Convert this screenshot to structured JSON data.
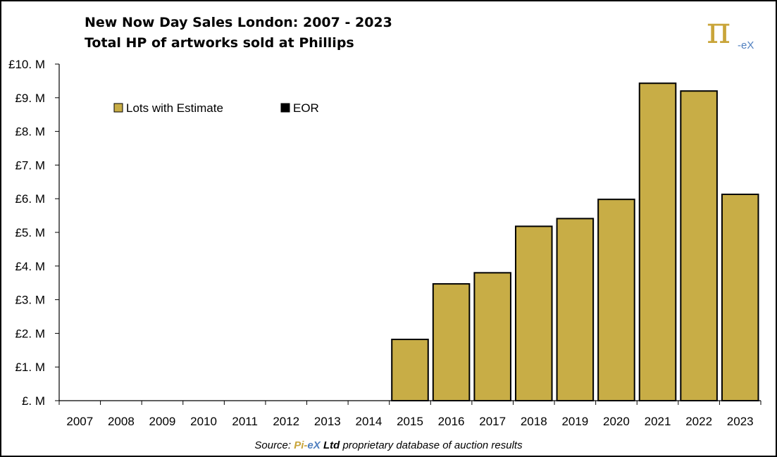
{
  "chart_data": {
    "type": "bar",
    "title": "New Now Day Sales London: 2007 - 2023",
    "subtitle": "Total HP of artworks sold at Phillips",
    "categories": [
      "2007",
      "2008",
      "2009",
      "2010",
      "2011",
      "2012",
      "2013",
      "2014",
      "2015",
      "2016",
      "2017",
      "2018",
      "2019",
      "2020",
      "2021",
      "2022",
      "2023"
    ],
    "series": [
      {
        "name": "Lots with Estimate",
        "color": "#c8ad46",
        "values": [
          0,
          0,
          0,
          0,
          0,
          0,
          0,
          0,
          1.82,
          3.47,
          3.8,
          5.18,
          5.41,
          5.98,
          9.43,
          9.2,
          6.13
        ]
      },
      {
        "name": "EOR",
        "color": "#000000",
        "values": [
          0,
          0,
          0,
          0,
          0,
          0,
          0,
          0,
          0,
          0,
          0,
          0,
          0,
          0,
          0,
          0,
          0
        ]
      }
    ],
    "yticks": [
      "£. M",
      "£1. M",
      "£2. M",
      "£3. M",
      "£4. M",
      "£5. M",
      "£6. M",
      "£7. M",
      "£8. M",
      "£9. M",
      "£10. M"
    ],
    "ylim": [
      0,
      10
    ],
    "xlabel": "",
    "ylabel": "",
    "grid": false,
    "legend": "top-left"
  },
  "logo": {
    "pi": "π",
    "ex": "-eX"
  },
  "source": {
    "prefix": "Source:",
    "brand_pi": "Pi-",
    "brand_ex": "eX",
    "ltd": "Ltd",
    "suffix": "proprietary database of auction results"
  }
}
